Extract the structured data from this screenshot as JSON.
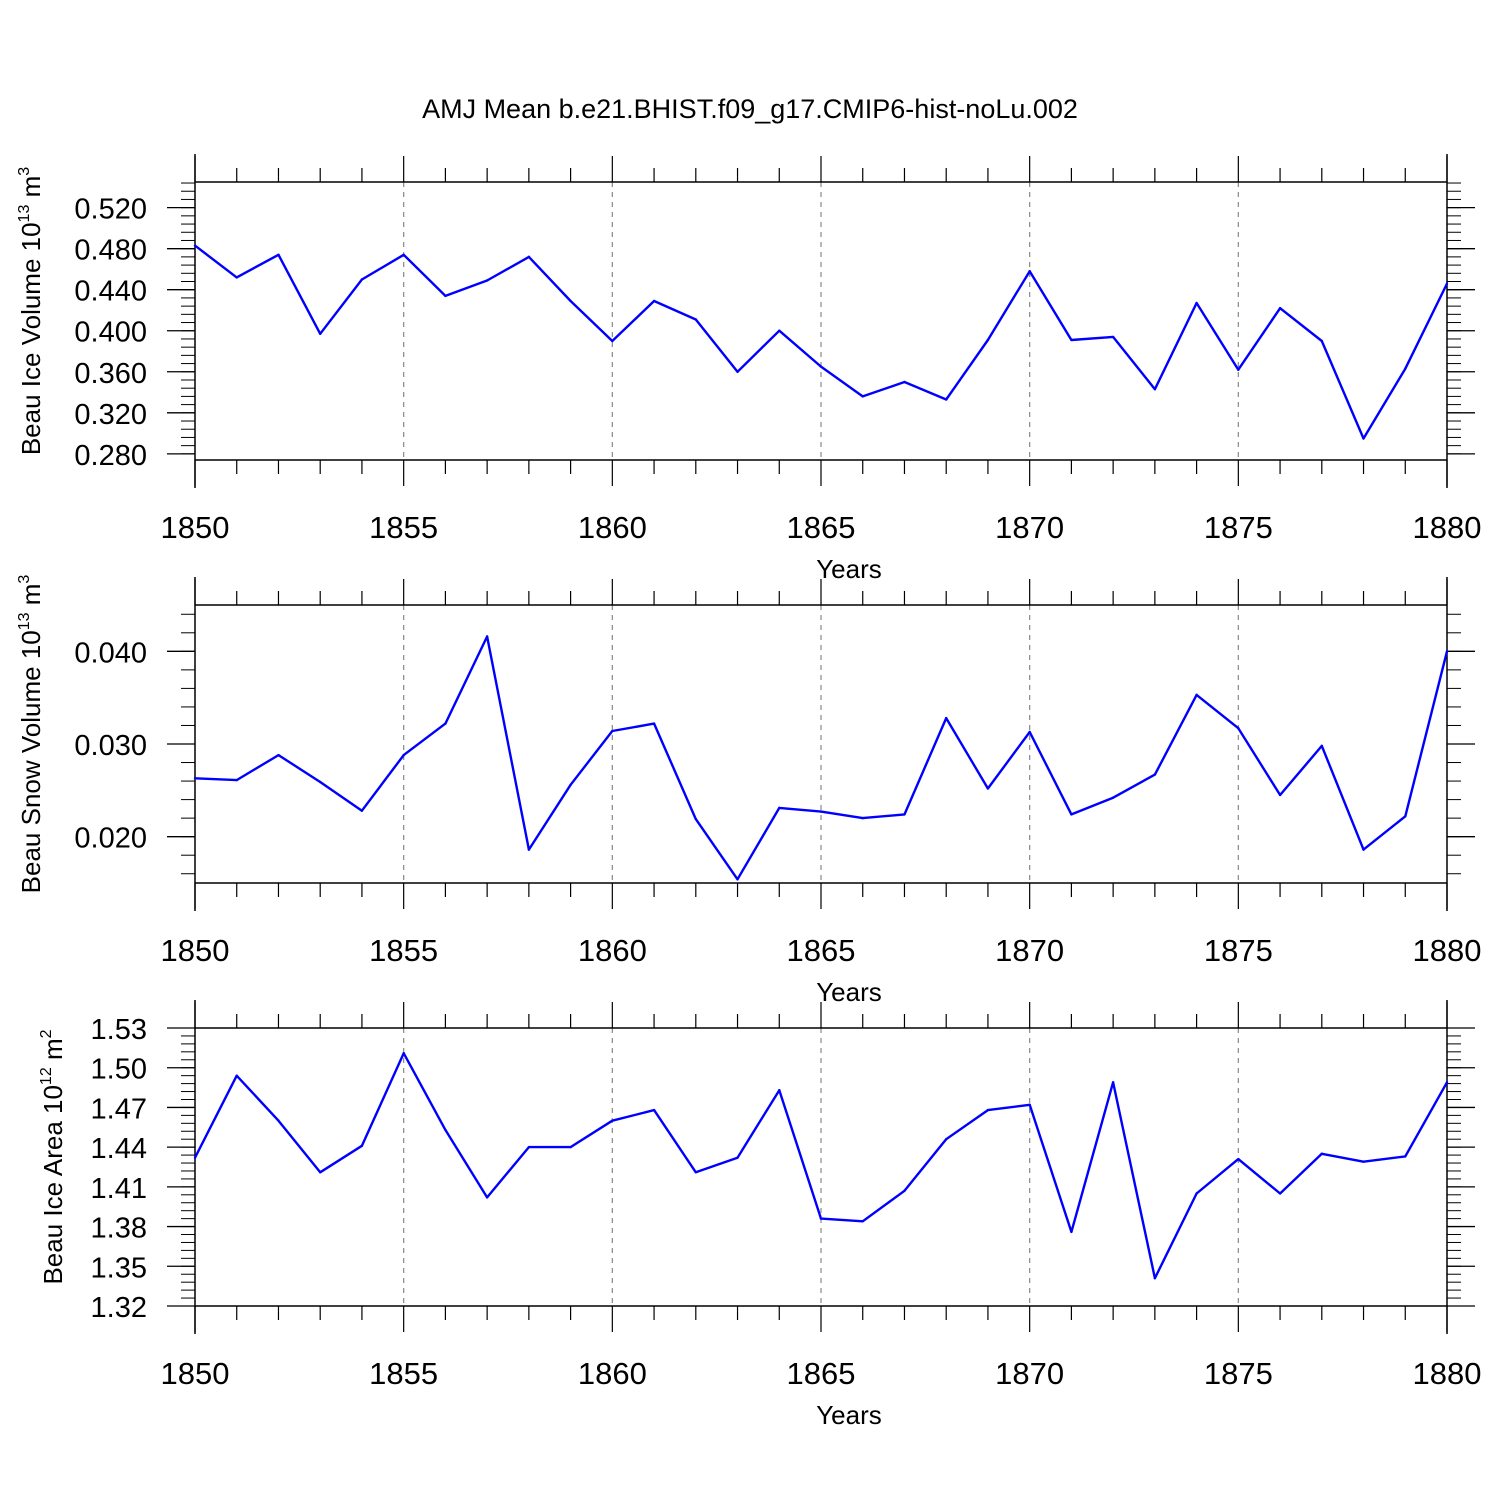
{
  "title": "AMJ Mean b.e21.BHIST.f09_g17.CMIP6-hist-noLu.002",
  "colors": {
    "series": "#0000ff",
    "axis": "#000000",
    "grid": "#888888"
  },
  "chart_data": [
    {
      "type": "line",
      "ylabel": "Beau Ice Volume 10",
      "ylabel_sup": "13",
      "ylabel_unit": " m",
      "ylabel_unit_sup": "3",
      "xlabel": "Years",
      "xlim": [
        1850,
        1880
      ],
      "ylim": [
        0.274,
        0.545
      ],
      "y_ticks": [
        0.28,
        0.32,
        0.36,
        0.4,
        0.44,
        0.48,
        0.52
      ],
      "y_tick_labels": [
        "0.280",
        "0.320",
        "0.360",
        "0.400",
        "0.440",
        "0.480",
        "0.520"
      ],
      "y_minor": 0.008,
      "x_ticks": [
        1850,
        1855,
        1860,
        1865,
        1870,
        1875,
        1880
      ],
      "x_tick_labels": [
        "1850",
        "1855",
        "1860",
        "1865",
        "1870",
        "1875",
        "1880"
      ],
      "grid": "dashed vertical at major x ticks",
      "x": [
        1850,
        1851,
        1852,
        1853,
        1854,
        1855,
        1856,
        1857,
        1858,
        1859,
        1860,
        1861,
        1862,
        1863,
        1864,
        1865,
        1866,
        1867,
        1868,
        1869,
        1870,
        1871,
        1872,
        1873,
        1874,
        1875,
        1876,
        1877,
        1878,
        1879,
        1880
      ],
      "values": [
        0.483,
        0.452,
        0.474,
        0.397,
        0.45,
        0.474,
        0.434,
        0.449,
        0.472,
        0.429,
        0.39,
        0.429,
        0.411,
        0.36,
        0.4,
        0.365,
        0.336,
        0.35,
        0.333,
        0.391,
        0.458,
        0.391,
        0.394,
        0.343,
        0.427,
        0.362,
        0.422,
        0.39,
        0.295,
        0.363,
        0.446
      ]
    },
    {
      "type": "line",
      "ylabel": "Beau Snow Volume 10",
      "ylabel_sup": "13",
      "ylabel_unit": " m",
      "ylabel_unit_sup": "3",
      "xlabel": "Years",
      "xlim": [
        1850,
        1880
      ],
      "ylim": [
        0.015,
        0.045
      ],
      "y_ticks": [
        0.02,
        0.03,
        0.04
      ],
      "y_tick_labels": [
        "0.020",
        "0.030",
        "0.040"
      ],
      "y_minor": 0.002,
      "x_ticks": [
        1850,
        1855,
        1860,
        1865,
        1870,
        1875,
        1880
      ],
      "x_tick_labels": [
        "1850",
        "1855",
        "1860",
        "1865",
        "1870",
        "1875",
        "1880"
      ],
      "grid": "dashed vertical at major x ticks",
      "x": [
        1850,
        1851,
        1852,
        1853,
        1854,
        1855,
        1856,
        1857,
        1858,
        1859,
        1860,
        1861,
        1862,
        1863,
        1864,
        1865,
        1866,
        1867,
        1868,
        1869,
        1870,
        1871,
        1872,
        1873,
        1874,
        1875,
        1876,
        1877,
        1878,
        1879,
        1880
      ],
      "values": [
        0.0263,
        0.0261,
        0.0288,
        0.0259,
        0.0228,
        0.0288,
        0.0322,
        0.0416,
        0.0186,
        0.0256,
        0.0314,
        0.0322,
        0.0219,
        0.0154,
        0.0231,
        0.0227,
        0.022,
        0.0224,
        0.0328,
        0.0252,
        0.0313,
        0.0224,
        0.0242,
        0.0267,
        0.0353,
        0.0317,
        0.0245,
        0.0298,
        0.0186,
        0.0222,
        0.04
      ]
    },
    {
      "type": "line",
      "ylabel": "Beau Ice Area 10",
      "ylabel_sup": "12",
      "ylabel_unit": " m",
      "ylabel_unit_sup": "2",
      "xlabel": "Years",
      "xlim": [
        1850,
        1880
      ],
      "ylim": [
        1.32,
        1.53
      ],
      "y_ticks": [
        1.32,
        1.35,
        1.38,
        1.41,
        1.44,
        1.47,
        1.5,
        1.53
      ],
      "y_tick_labels": [
        "1.32",
        "1.35",
        "1.38",
        "1.41",
        "1.44",
        "1.47",
        "1.50",
        "1.53"
      ],
      "y_minor": 0.006,
      "x_ticks": [
        1850,
        1855,
        1860,
        1865,
        1870,
        1875,
        1880
      ],
      "x_tick_labels": [
        "1850",
        "1855",
        "1860",
        "1865",
        "1870",
        "1875",
        "1880"
      ],
      "grid": "dashed vertical at major x ticks",
      "x": [
        1850,
        1851,
        1852,
        1853,
        1854,
        1855,
        1856,
        1857,
        1858,
        1859,
        1860,
        1861,
        1862,
        1863,
        1864,
        1865,
        1866,
        1867,
        1868,
        1869,
        1870,
        1871,
        1872,
        1873,
        1874,
        1875,
        1876,
        1877,
        1878,
        1879,
        1880
      ],
      "values": [
        1.432,
        1.494,
        1.46,
        1.421,
        1.441,
        1.511,
        1.453,
        1.402,
        1.44,
        1.44,
        1.46,
        1.468,
        1.421,
        1.432,
        1.483,
        1.386,
        1.384,
        1.407,
        1.446,
        1.468,
        1.472,
        1.376,
        1.489,
        1.341,
        1.405,
        1.431,
        1.405,
        1.435,
        1.429,
        1.433,
        1.489
      ]
    }
  ]
}
